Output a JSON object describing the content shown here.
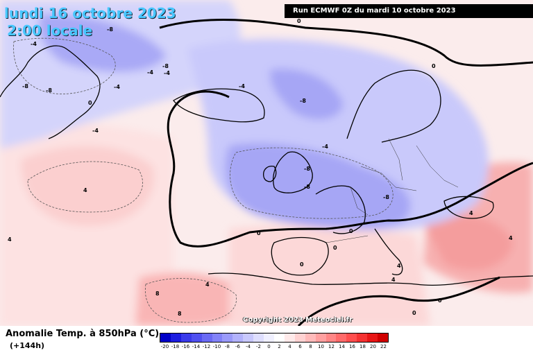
{
  "header": {
    "title_date": "lundi 16 octobre 2023",
    "title_time": "2:00 locale",
    "run_info": "Run ECMWF 0Z du mardi 10 octobre 2023"
  },
  "copyright": "Copyright 2023 Meteociel.fr",
  "legend": {
    "title": "Anomalie Temp. à 850hPa (°C)",
    "lead_time": "(+144h)",
    "ticks": [
      "-20",
      "-18",
      "-16",
      "-14",
      "-12",
      "-10",
      "-8",
      "-6",
      "-4",
      "-2",
      "0",
      "2",
      "4",
      "6",
      "8",
      "10",
      "12",
      "14",
      "16",
      "18",
      "20",
      "22"
    ],
    "colors": [
      "#0000c8",
      "#1d1de0",
      "#3a3aea",
      "#5050f0",
      "#6a6af4",
      "#8282f8",
      "#9a9afa",
      "#b2b2fc",
      "#c8c8fd",
      "#dedefe",
      "#f0f0ff",
      "#ffffff",
      "#ffeaea",
      "#ffd2d2",
      "#ffbaba",
      "#ffa0a0",
      "#ff8686",
      "#ff6a6a",
      "#ff4e4e",
      "#f53232",
      "#e81616",
      "#d00000"
    ]
  },
  "isoline_labels": [
    {
      "id": "i1",
      "text": "-8"
    },
    {
      "id": "i2",
      "text": "-4"
    },
    {
      "id": "i3",
      "text": "-8"
    },
    {
      "id": "i4",
      "text": "-8"
    },
    {
      "id": "i5",
      "text": "-4"
    },
    {
      "id": "i6",
      "text": "-8"
    },
    {
      "id": "i7",
      "text": "-4"
    },
    {
      "id": "i8",
      "text": "0"
    },
    {
      "id": "i9",
      "text": "-4"
    },
    {
      "id": "i10",
      "text": "-4"
    },
    {
      "id": "i11",
      "text": "-8"
    },
    {
      "id": "i12",
      "text": "-4"
    },
    {
      "id": "i13",
      "text": "-8"
    },
    {
      "id": "i14",
      "text": "-4"
    },
    {
      "id": "i15",
      "text": "-8"
    },
    {
      "id": "i16",
      "text": "-8"
    },
    {
      "id": "i17",
      "text": "0"
    },
    {
      "id": "i18",
      "text": "0"
    },
    {
      "id": "i19",
      "text": "0"
    },
    {
      "id": "i20",
      "text": "4"
    },
    {
      "id": "i21",
      "text": "4"
    },
    {
      "id": "i22",
      "text": "4"
    },
    {
      "id": "i23",
      "text": "8"
    },
    {
      "id": "i24",
      "text": "8"
    },
    {
      "id": "i25",
      "text": "4"
    },
    {
      "id": "i26",
      "text": "0"
    },
    {
      "id": "i27",
      "text": "4"
    },
    {
      "id": "i28",
      "text": "0"
    },
    {
      "id": "i29",
      "text": "4"
    },
    {
      "id": "i30",
      "text": "0"
    },
    {
      "id": "i31",
      "text": "0"
    },
    {
      "id": "i32",
      "text": "4"
    },
    {
      "id": "i33",
      "text": "0"
    }
  ]
}
